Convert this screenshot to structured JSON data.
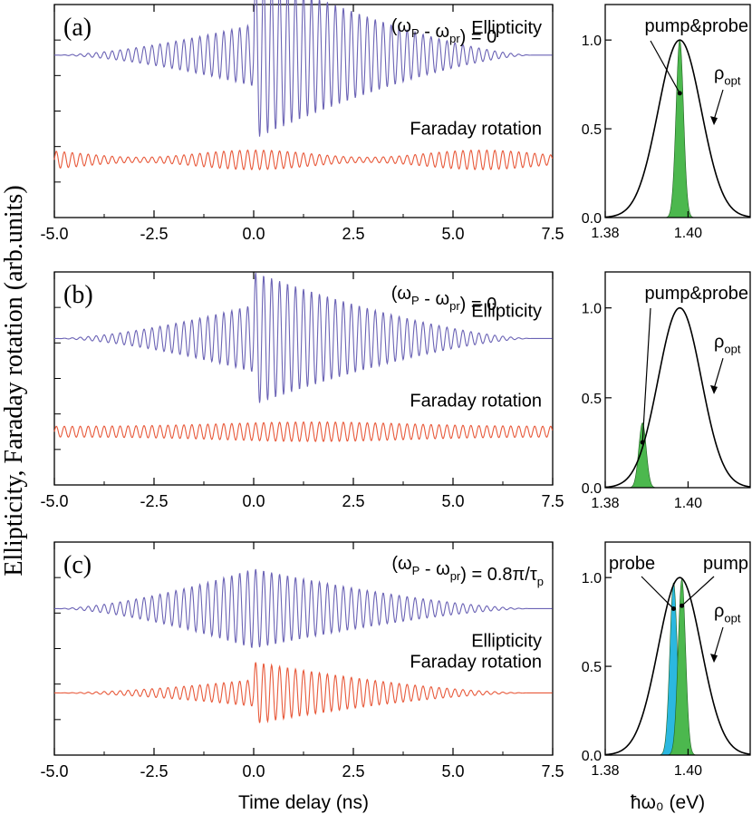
{
  "figure": {
    "ylabel": "Ellipticity, Faraday rotation (arb.units)",
    "xlabel_left": "Time delay (ns)",
    "xlabel_right": "ħω₀ (eV)"
  },
  "chart_data": [
    {
      "type": "line",
      "panel_label": "(a)",
      "condition": "(ω_P - ω_pr) = 0",
      "xlim": [
        -5.0,
        7.5
      ],
      "x_ticks": [
        "-5.0",
        "-2.5",
        "0.0",
        "2.5",
        "5.0",
        "7.5"
      ],
      "pulse_period_ns": 0.2,
      "series": [
        {
          "name": "Ellipticity",
          "color": "#6b63b5",
          "baseline": 0.63,
          "amp_before_peak": 0.35,
          "amp_after_peak": 0.95,
          "decay_end": 7.0
        },
        {
          "name": "Faraday rotation",
          "color": "#e8593a",
          "baseline": -0.55,
          "amp_before_peak": 0.06,
          "amp_after_peak": 0.1,
          "modulated": true
        }
      ]
    },
    {
      "type": "line",
      "panel_label": "(b)",
      "condition": "(ω_P - ω_pr) = 0",
      "xlim": [
        -5.0,
        7.5
      ],
      "x_ticks": [
        "-5.0",
        "-2.5",
        "0.0",
        "2.5",
        "5.0",
        "7.5"
      ],
      "pulse_period_ns": 0.2,
      "series": [
        {
          "name": "Ellipticity",
          "color": "#6b63b5",
          "baseline": 0.45,
          "amp_before_peak": 0.38,
          "amp_after_peak": 0.75,
          "decay_end": 7.0
        },
        {
          "name": "Faraday rotation",
          "color": "#e8593a",
          "baseline": -0.6,
          "amp_before_peak": 0.1,
          "amp_after_peak": 0.1
        }
      ]
    },
    {
      "type": "line",
      "panel_label": "(c)",
      "condition": "(ω_P - ω_pr) = 0.8π/τ_p",
      "xlim": [
        -5.0,
        7.5
      ],
      "x_ticks": [
        "-5.0",
        "-2.5",
        "0.0",
        "2.5",
        "5.0",
        "7.5"
      ],
      "pulse_period_ns": 0.2,
      "series": [
        {
          "name": "Ellipticity",
          "color": "#6b63b5",
          "baseline": 0.45,
          "amp_before_peak": 0.45,
          "amp_after_peak": 0.45
        },
        {
          "name": "Faraday rotation",
          "color": "#e8593a",
          "baseline": -0.5,
          "amp_before_peak": 0.15,
          "amp_after_peak": 0.35
        }
      ]
    }
  ],
  "spectra": [
    {
      "type": "area",
      "xlim": [
        1.38,
        1.415
      ],
      "ylim": [
        0,
        1.2
      ],
      "x_ticks": [
        "1.38",
        "1.40"
      ],
      "y_ticks": [
        "0.0",
        "0.5",
        "1.0"
      ],
      "rho_label": "ρ_opt",
      "envelope": {
        "center": 1.398,
        "sigma": 0.0052,
        "peak": 1.0
      },
      "fills": [
        {
          "label": "pump&probe",
          "color": "#4cb84e",
          "center": 1.398,
          "sigma": 0.0009,
          "peak": 1.0
        }
      ]
    },
    {
      "type": "area",
      "xlim": [
        1.38,
        1.415
      ],
      "ylim": [
        0,
        1.2
      ],
      "x_ticks": [
        "1.38",
        "1.40"
      ],
      "y_ticks": [
        "0.0",
        "0.5",
        "1.0"
      ],
      "rho_label": "ρ_opt",
      "envelope": {
        "center": 1.398,
        "sigma": 0.0052,
        "peak": 1.0
      },
      "fills": [
        {
          "label": "pump&probe",
          "color": "#4cb84e",
          "center": 1.389,
          "sigma": 0.0009,
          "peak": 0.36
        }
      ]
    },
    {
      "type": "area",
      "xlim": [
        1.38,
        1.415
      ],
      "ylim": [
        0,
        1.2
      ],
      "x_ticks": [
        "1.38",
        "1.40"
      ],
      "y_ticks": [
        "0.0",
        "0.5",
        "1.0"
      ],
      "rho_label": "ρ_opt",
      "envelope": {
        "center": 1.398,
        "sigma": 0.0052,
        "peak": 1.0
      },
      "fills": [
        {
          "label": "probe",
          "color": "#2bb8e0",
          "center": 1.3965,
          "sigma": 0.0009,
          "peak": 0.97
        },
        {
          "label": "pump",
          "color": "#4cb84e",
          "center": 1.3985,
          "sigma": 0.0009,
          "peak": 0.99
        }
      ]
    }
  ]
}
